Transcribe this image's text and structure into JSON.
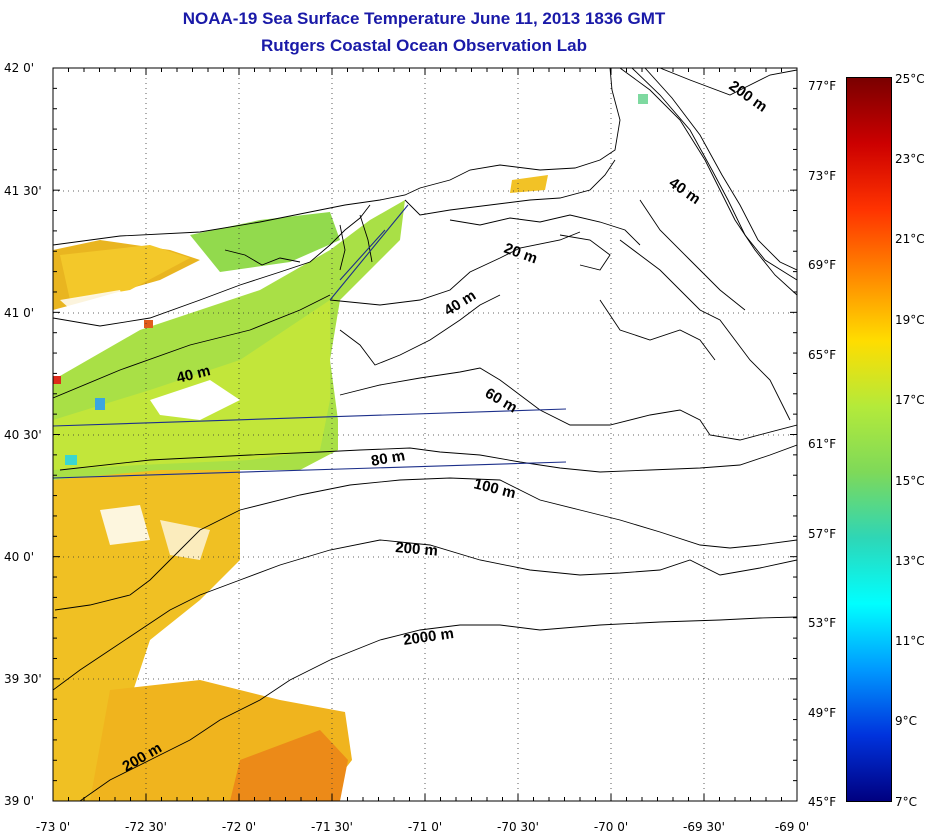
{
  "title": "NOAA-19 Sea Surface Temperature June 11, 2013 1836 GMT",
  "subtitle": "Rutgers Coastal Ocean Observation Lab",
  "lat_labels": [
    "42 0'",
    "41 30'",
    "41 0'",
    "40 30'",
    "40 0'",
    "39 30'",
    "39 0'"
  ],
  "lon_labels": [
    "-73 0'",
    "-72 30'",
    "-72 0'",
    "-71 30'",
    "-71 0'",
    "-70 30'",
    "-70 0'",
    "-69 30'",
    "-69 0'"
  ],
  "fahrenheit_labels": [
    "77°F",
    "73°F",
    "69°F",
    "65°F",
    "61°F",
    "57°F",
    "53°F",
    "49°F",
    "45°F"
  ],
  "celsius_labels": [
    "25°C",
    "23°C",
    "21°C",
    "19°C",
    "17°C",
    "15°C",
    "13°C",
    "11°C",
    "9°C",
    "7°C"
  ],
  "contour_labels": [
    "200 m",
    "40 m",
    "20 m",
    "40 m",
    "40 m",
    "60 m",
    "80 m",
    "100 m",
    "200 m",
    "2000 m",
    "200 m"
  ],
  "colors": {
    "title": "#1a1aa8",
    "track_line": "#1c2f8a",
    "colorbar_stops": [
      "#7a0000",
      "#cc0000",
      "#ff3300",
      "#ff8800",
      "#ffdd00",
      "#b4ea3a",
      "#7ed959",
      "#2ed6b6",
      "#00ffff",
      "#0099ff",
      "#0033dd",
      "#000080"
    ]
  },
  "units": "Sea surface temperature, °C / °F"
}
